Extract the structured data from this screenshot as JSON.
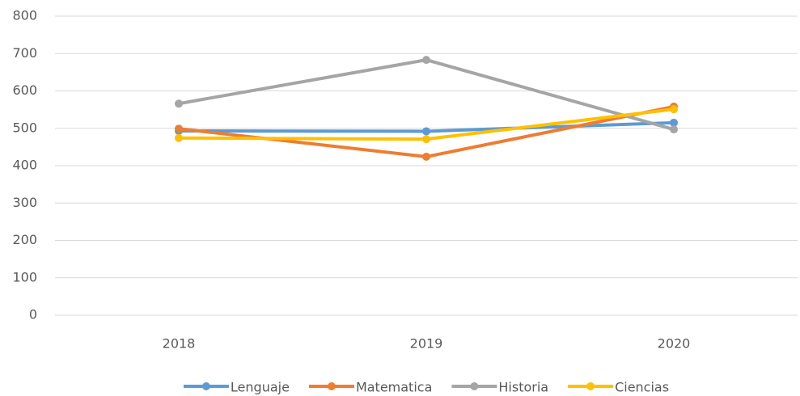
{
  "chart_data": {
    "type": "line",
    "categories": [
      "2018",
      "2019",
      "2020"
    ],
    "series": [
      {
        "name": "Lenguaje",
        "color": "#5b9bd5",
        "values": [
          493,
          492,
          515
        ]
      },
      {
        "name": "Matematica",
        "color": "#ed7d31",
        "values": [
          499,
          424,
          558
        ]
      },
      {
        "name": "Historia",
        "color": "#a5a5a5",
        "values": [
          566,
          683,
          497
        ]
      },
      {
        "name": "Ciencias",
        "color": "#ffc000",
        "values": [
          474,
          471,
          551
        ]
      }
    ],
    "ylim": [
      0,
      800
    ],
    "yticks": [
      0,
      100,
      200,
      300,
      400,
      500,
      600,
      700,
      800
    ],
    "grid": true,
    "legend": "bottom"
  }
}
